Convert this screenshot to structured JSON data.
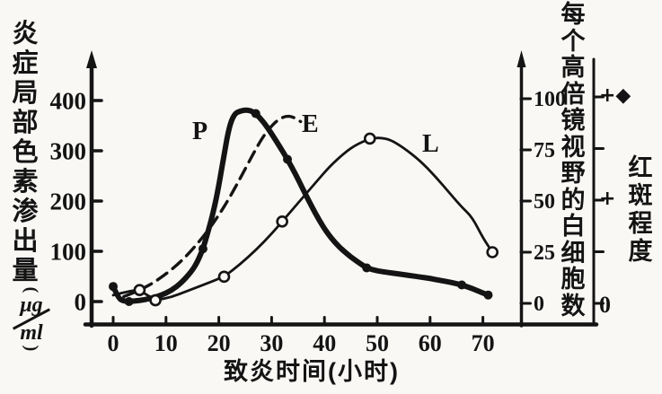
{
  "figure": {
    "left_axis": {
      "title": "炎症局部色素渗出量",
      "unit_open": "(",
      "unit_top": "μg",
      "unit_bottom": "ml",
      "unit_close": ")",
      "ticks": [
        400,
        300,
        200,
        100,
        0
      ]
    },
    "right_axis": {
      "title": "每个高倍镜视野的白细胞数",
      "ticks": [
        100,
        75,
        50,
        25,
        0
      ]
    },
    "erythema_axis": {
      "title": "红斑程度",
      "tick_labels": [
        "+◆",
        "",
        "+",
        "",
        "0"
      ]
    },
    "x_axis": {
      "title": "致炎时间(小时)",
      "ticks": [
        0,
        10,
        20,
        30,
        40,
        50,
        60,
        70
      ]
    }
  },
  "chart_data": {
    "type": "line",
    "title": "",
    "xlabel": "致炎时间(小时)",
    "ylabel_left": "炎症局部色素渗出量(μg/ml)",
    "ylabel_right": "每个高倍镜视野的白细胞数",
    "ylabel_far_right": "红斑程度",
    "xlim": [
      0,
      75
    ],
    "ylim_left": [
      0,
      430
    ],
    "ylim_right": [
      0,
      105
    ],
    "erythema_levels": [
      "0",
      "+",
      "+◆"
    ],
    "series": [
      {
        "name": "P",
        "axis": "left",
        "line": "thick-solid",
        "marker": "filled-dot",
        "points": [
          [
            0,
            30
          ],
          [
            1,
            6
          ],
          [
            2,
            1
          ],
          [
            3,
            0
          ],
          [
            5,
            2
          ],
          [
            7,
            6
          ],
          [
            9,
            12
          ],
          [
            11,
            22
          ],
          [
            13,
            38
          ],
          [
            15,
            62
          ],
          [
            16,
            80
          ],
          [
            17,
            105
          ],
          [
            18,
            140
          ],
          [
            19,
            180
          ],
          [
            20,
            230
          ],
          [
            21,
            292
          ],
          [
            22,
            350
          ],
          [
            23,
            374
          ],
          [
            24,
            379
          ],
          [
            25,
            381
          ],
          [
            26,
            380
          ],
          [
            27,
            374
          ],
          [
            28.5,
            357
          ],
          [
            30,
            334
          ],
          [
            31.5,
            309
          ],
          [
            33,
            283
          ],
          [
            34.5,
            254
          ],
          [
            36,
            222
          ],
          [
            37.5,
            191
          ],
          [
            39,
            162
          ],
          [
            40.5,
            137
          ],
          [
            42,
            117
          ],
          [
            44,
            97
          ],
          [
            46,
            81
          ],
          [
            48,
            67
          ],
          [
            50,
            61
          ],
          [
            52,
            58
          ],
          [
            54,
            55
          ],
          [
            56,
            52
          ],
          [
            58,
            49
          ],
          [
            60,
            46
          ],
          [
            62,
            42
          ],
          [
            64,
            38
          ],
          [
            66,
            33
          ],
          [
            68,
            26
          ],
          [
            70,
            17
          ],
          [
            71,
            13
          ]
        ],
        "markers": [
          [
            0,
            30
          ],
          [
            3,
            0
          ],
          [
            17,
            105
          ],
          [
            27,
            374
          ],
          [
            33,
            283
          ],
          [
            48,
            67
          ],
          [
            66,
            33
          ],
          [
            71,
            13
          ]
        ]
      },
      {
        "name": "E",
        "axis": "left",
        "line": "dashed",
        "marker": "none",
        "points": [
          [
            2,
            10
          ],
          [
            4,
            18
          ],
          [
            6,
            28
          ],
          [
            8,
            40
          ],
          [
            10,
            55
          ],
          [
            12,
            72
          ],
          [
            14,
            92
          ],
          [
            16,
            116
          ],
          [
            18,
            142
          ],
          [
            20,
            172
          ],
          [
            22,
            206
          ],
          [
            24,
            244
          ],
          [
            26,
            284
          ],
          [
            28,
            322
          ],
          [
            29.5,
            344
          ],
          [
            31,
            360
          ],
          [
            32.5,
            369
          ],
          [
            34,
            368
          ],
          [
            35.5,
            358
          ]
        ],
        "markers": []
      },
      {
        "name": "L",
        "axis": "right",
        "line": "thin-solid",
        "marker": "open-circle",
        "points": [
          [
            0,
            4
          ],
          [
            3,
            6
          ],
          [
            5,
            6.5
          ],
          [
            8,
            1.5
          ],
          [
            11,
            3
          ],
          [
            14,
            6
          ],
          [
            17,
            9
          ],
          [
            21,
            13
          ],
          [
            24,
            19
          ],
          [
            27,
            26
          ],
          [
            30,
            34
          ],
          [
            32,
            40
          ],
          [
            35,
            49
          ],
          [
            38,
            58
          ],
          [
            41,
            67
          ],
          [
            44,
            74
          ],
          [
            46,
            77.5
          ],
          [
            48.6,
            80.5
          ],
          [
            50.5,
            81
          ],
          [
            52.5,
            80
          ],
          [
            55,
            76
          ],
          [
            58,
            70
          ],
          [
            61,
            62
          ],
          [
            64,
            53
          ],
          [
            66,
            47
          ],
          [
            68,
            42
          ],
          [
            70,
            32
          ],
          [
            71.8,
            25
          ]
        ],
        "markers": [
          [
            5,
            6.5
          ],
          [
            8,
            1.5
          ],
          [
            21,
            13
          ],
          [
            32,
            40
          ],
          [
            48.6,
            80.5
          ],
          [
            71.8,
            25
          ]
        ]
      }
    ]
  },
  "colors": {
    "ink": "#141414",
    "paper": "#f9f8f5"
  }
}
